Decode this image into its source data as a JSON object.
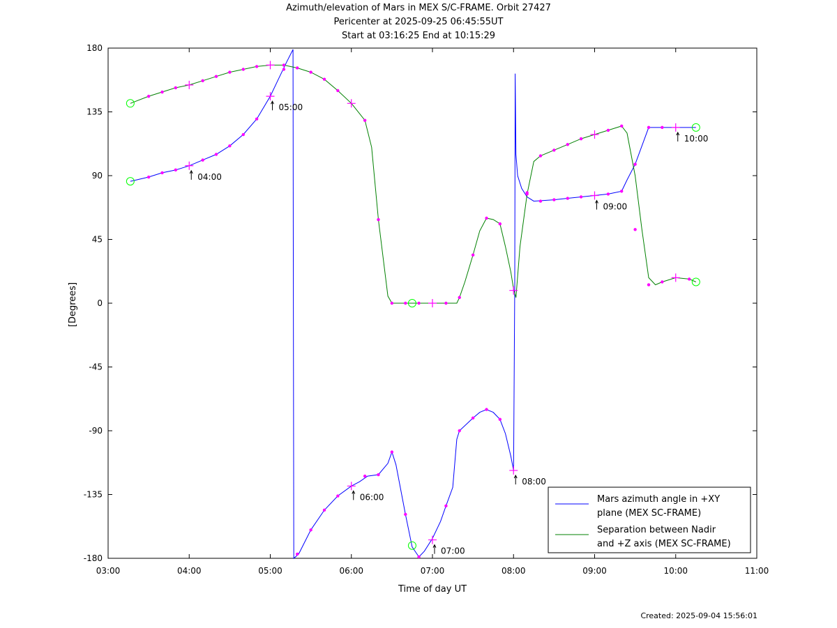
{
  "title_lines": [
    "Azimuth/elevation of Mars in MEX S/C-FRAME.  Orbit 27427",
    "Pericenter at 2025-09-25 06:45:55UT",
    "Start at 03:16:25 End at 10:15:29"
  ],
  "created": "Created: 2025-09-04 15:56:01",
  "chart_data": {
    "type": "line",
    "xlabel": "Time of day UT",
    "ylabel": "[Degrees]",
    "xlim": [
      3.0,
      11.0
    ],
    "ylim": [
      -180,
      180
    ],
    "x_ticks": [
      3,
      4,
      5,
      6,
      7,
      8,
      9,
      10,
      11
    ],
    "x_tick_labels": [
      "03:00",
      "04:00",
      "05:00",
      "06:00",
      "07:00",
      "08:00",
      "09:00",
      "10:00",
      "11:00"
    ],
    "y_ticks": [
      180,
      135,
      90,
      45,
      0,
      -45,
      -90,
      -135,
      -180
    ],
    "y_tick_labels": [
      "180",
      "135",
      "90",
      "45",
      "0",
      "-45",
      "-90",
      "-135",
      "-180"
    ],
    "grid": false,
    "legend_position": "bottom-right",
    "colors": {
      "azimuth": "#0000ff",
      "separation": "#008000",
      "marker": "#ff00ff",
      "endpoint": "#00ff00"
    },
    "series": [
      {
        "name": "Mars azimuth angle in +XY\nplane (MEX SC-FRAME)",
        "key": "azimuth",
        "points": [
          [
            3.274,
            86
          ],
          [
            3.35,
            87
          ],
          [
            3.5,
            89
          ],
          [
            3.667,
            92
          ],
          [
            3.833,
            94
          ],
          [
            4.0,
            97
          ],
          [
            4.167,
            101
          ],
          [
            4.333,
            105
          ],
          [
            4.5,
            111
          ],
          [
            4.667,
            119
          ],
          [
            4.833,
            130
          ],
          [
            5.0,
            146
          ],
          [
            5.1,
            158
          ],
          [
            5.2,
            170
          ],
          [
            5.28,
            179
          ],
          [
            5.285,
            0
          ],
          [
            5.29,
            -180
          ],
          [
            5.35,
            -177
          ],
          [
            5.5,
            -160
          ],
          [
            5.667,
            -146
          ],
          [
            5.833,
            -136
          ],
          [
            6.0,
            -129
          ],
          [
            6.1,
            -126
          ],
          [
            6.2,
            -122
          ],
          [
            6.333,
            -121
          ],
          [
            6.45,
            -113
          ],
          [
            6.5,
            -105
          ],
          [
            6.55,
            -114
          ],
          [
            6.667,
            -149
          ],
          [
            6.75,
            -172
          ],
          [
            6.833,
            -179
          ],
          [
            6.9,
            -175
          ],
          [
            7.0,
            -166
          ],
          [
            7.1,
            -154
          ],
          [
            7.167,
            -143
          ],
          [
            7.25,
            -130
          ],
          [
            7.3,
            -96
          ],
          [
            7.333,
            -90
          ],
          [
            7.5,
            -81
          ],
          [
            7.583,
            -77
          ],
          [
            7.667,
            -75
          ],
          [
            7.75,
            -77
          ],
          [
            7.833,
            -82
          ],
          [
            7.9,
            -92
          ],
          [
            7.967,
            -108
          ],
          [
            8.0,
            -118
          ],
          [
            8.015,
            13
          ],
          [
            8.02,
            162
          ],
          [
            8.03,
            105
          ],
          [
            8.05,
            90
          ],
          [
            8.1,
            81
          ],
          [
            8.167,
            75
          ],
          [
            8.25,
            72
          ],
          [
            8.5,
            73
          ],
          [
            8.667,
            74
          ],
          [
            9.0,
            76
          ],
          [
            9.167,
            77
          ],
          [
            9.333,
            79
          ],
          [
            9.4,
            87
          ],
          [
            9.5,
            98
          ],
          [
            9.583,
            111
          ],
          [
            9.667,
            124
          ],
          [
            9.833,
            124
          ],
          [
            10.0,
            124
          ],
          [
            10.25,
            124
          ]
        ],
        "markers": [
          [
            3.5,
            89
          ],
          [
            3.667,
            92
          ],
          [
            3.833,
            94
          ],
          [
            4.167,
            101
          ],
          [
            4.333,
            105
          ],
          [
            4.5,
            111
          ],
          [
            4.667,
            119
          ],
          [
            4.833,
            130
          ],
          [
            5.167,
            165
          ],
          [
            5.333,
            -177
          ],
          [
            5.5,
            -160
          ],
          [
            5.667,
            -146
          ],
          [
            5.833,
            -136
          ],
          [
            6.167,
            -122
          ],
          [
            6.333,
            -121
          ],
          [
            6.5,
            -105
          ],
          [
            6.667,
            -149
          ],
          [
            6.833,
            -179
          ],
          [
            7.167,
            -143
          ],
          [
            7.333,
            -90
          ],
          [
            7.5,
            -81
          ],
          [
            7.667,
            -75
          ],
          [
            7.833,
            -82
          ],
          [
            8.167,
            78
          ],
          [
            8.333,
            72
          ],
          [
            8.5,
            73
          ],
          [
            8.667,
            74
          ],
          [
            8.833,
            75
          ],
          [
            9.167,
            77
          ],
          [
            9.333,
            79
          ],
          [
            9.5,
            98
          ],
          [
            9.667,
            124
          ],
          [
            9.833,
            124
          ]
        ],
        "hour_markers": [
          [
            4.0,
            97
          ],
          [
            5.0,
            146
          ],
          [
            6.0,
            -129
          ],
          [
            7.0,
            -167
          ],
          [
            8.0,
            -118
          ],
          [
            9.0,
            76
          ],
          [
            10.0,
            124
          ]
        ],
        "endpoints": [
          [
            3.274,
            86
          ],
          [
            10.25,
            124
          ]
        ]
      },
      {
        "name": "Separation between Nadir\nand +Z axis (MEX SC-FRAME)",
        "key": "separation",
        "points": [
          [
            3.274,
            141
          ],
          [
            3.5,
            146
          ],
          [
            3.667,
            149
          ],
          [
            3.833,
            152
          ],
          [
            4.0,
            154
          ],
          [
            4.167,
            157
          ],
          [
            4.333,
            160
          ],
          [
            4.5,
            163
          ],
          [
            4.667,
            165
          ],
          [
            4.833,
            167
          ],
          [
            5.0,
            168
          ],
          [
            5.167,
            168
          ],
          [
            5.333,
            166
          ],
          [
            5.5,
            163
          ],
          [
            5.667,
            158
          ],
          [
            5.833,
            150
          ],
          [
            6.0,
            141
          ],
          [
            6.167,
            129
          ],
          [
            6.25,
            110
          ],
          [
            6.333,
            59
          ],
          [
            6.4,
            28
          ],
          [
            6.45,
            5
          ],
          [
            6.5,
            0
          ],
          [
            6.667,
            0
          ],
          [
            6.75,
            0
          ],
          [
            7.0,
            0
          ],
          [
            7.167,
            0
          ],
          [
            7.3,
            0
          ],
          [
            7.333,
            4
          ],
          [
            7.4,
            15
          ],
          [
            7.5,
            34
          ],
          [
            7.583,
            51
          ],
          [
            7.667,
            60
          ],
          [
            7.75,
            59
          ],
          [
            7.833,
            56
          ],
          [
            7.9,
            40
          ],
          [
            7.967,
            22
          ],
          [
            8.0,
            10
          ],
          [
            8.03,
            4
          ],
          [
            8.08,
            40
          ],
          [
            8.167,
            77
          ],
          [
            8.25,
            100
          ],
          [
            8.333,
            104
          ],
          [
            8.5,
            108
          ],
          [
            8.667,
            112
          ],
          [
            8.833,
            116
          ],
          [
            9.0,
            119
          ],
          [
            9.167,
            122
          ],
          [
            9.333,
            125
          ],
          [
            9.4,
            120
          ],
          [
            9.5,
            90
          ],
          [
            9.583,
            52
          ],
          [
            9.667,
            18
          ],
          [
            9.75,
            13
          ],
          [
            9.833,
            15
          ],
          [
            10.0,
            18
          ],
          [
            10.167,
            17
          ],
          [
            10.25,
            15
          ]
        ],
        "markers": [
          [
            3.5,
            146
          ],
          [
            3.667,
            149
          ],
          [
            3.833,
            152
          ],
          [
            4.167,
            157
          ],
          [
            4.333,
            160
          ],
          [
            4.5,
            163
          ],
          [
            4.667,
            165
          ],
          [
            4.833,
            167
          ],
          [
            5.167,
            168
          ],
          [
            5.333,
            166
          ],
          [
            5.5,
            163
          ],
          [
            5.667,
            158
          ],
          [
            5.833,
            150
          ],
          [
            6.167,
            129
          ],
          [
            6.333,
            59
          ],
          [
            6.5,
            0
          ],
          [
            6.667,
            0
          ],
          [
            6.833,
            0
          ],
          [
            7.167,
            0
          ],
          [
            7.333,
            4
          ],
          [
            7.5,
            34
          ],
          [
            7.667,
            60
          ],
          [
            7.833,
            56
          ],
          [
            8.167,
            77
          ],
          [
            8.333,
            104
          ],
          [
            8.5,
            108
          ],
          [
            8.667,
            112
          ],
          [
            8.833,
            116
          ],
          [
            9.167,
            122
          ],
          [
            9.333,
            125
          ],
          [
            9.5,
            52
          ],
          [
            9.667,
            13
          ],
          [
            9.833,
            15
          ],
          [
            10.167,
            17
          ]
        ],
        "hour_markers": [
          [
            4.0,
            154
          ],
          [
            5.0,
            168
          ],
          [
            6.0,
            141
          ],
          [
            7.0,
            0
          ],
          [
            8.0,
            9
          ],
          [
            9.0,
            119
          ],
          [
            10.0,
            18
          ]
        ],
        "endpoints": [
          [
            3.274,
            141
          ],
          [
            6.75,
            0
          ],
          [
            10.25,
            15
          ]
        ]
      }
    ],
    "annotations": [
      {
        "x": 4.0,
        "y": 94,
        "text": "04:00"
      },
      {
        "x": 5.0,
        "y": 143,
        "text": "05:00"
      },
      {
        "x": 6.0,
        "y": -132,
        "text": "06:00"
      },
      {
        "x": 7.0,
        "y": -170,
        "text": "07:00"
      },
      {
        "x": 8.0,
        "y": -121,
        "text": "08:00"
      },
      {
        "x": 9.0,
        "y": 73,
        "text": "09:00"
      },
      {
        "x": 10.0,
        "y": 121,
        "text": "10:00"
      }
    ],
    "extra_endpoint_azimuth": [
      6.75,
      -171
    ]
  }
}
